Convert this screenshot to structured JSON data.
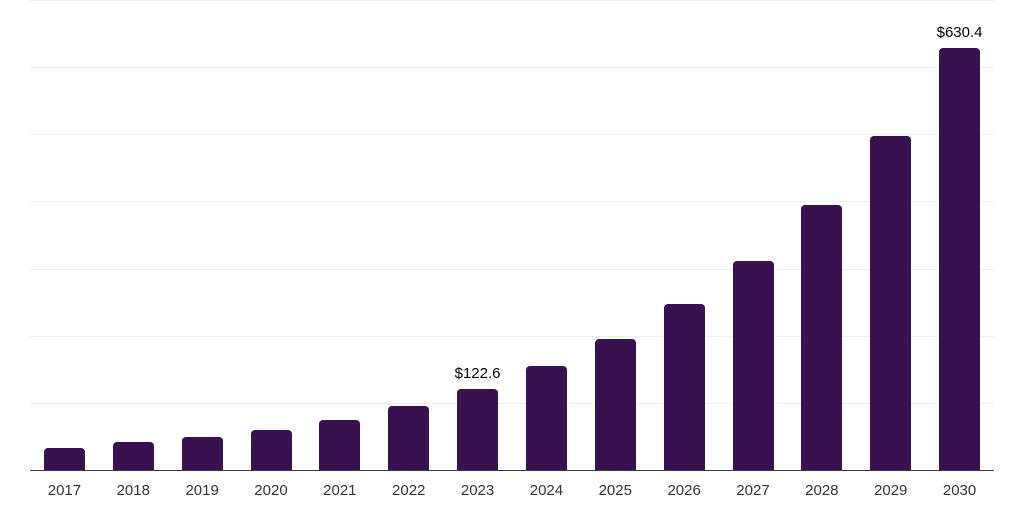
{
  "chart_data": {
    "type": "bar",
    "title": "",
    "xlabel": "",
    "ylabel": "",
    "categories": [
      "2017",
      "2018",
      "2019",
      "2020",
      "2021",
      "2022",
      "2023",
      "2024",
      "2025",
      "2026",
      "2027",
      "2028",
      "2029",
      "2030"
    ],
    "values": [
      33.6,
      43.1,
      50.6,
      61.0,
      76.3,
      96.7,
      122.6,
      156.2,
      196.0,
      248.5,
      312.5,
      395.8,
      498.4,
      630.4
    ],
    "data_labels": [
      {
        "index": 6,
        "text": "$122.6"
      },
      {
        "index": 13,
        "text": "$630.4"
      }
    ],
    "ylim": [
      0,
      700
    ],
    "gridline_step": 100,
    "grid": true,
    "y_tick_labels_visible": false,
    "legend": "none",
    "colors": {
      "bar": "#38124f",
      "axis_line": "#3b3b3b",
      "gridline": "#efefef",
      "tick_label": "#333333",
      "data_label": "#000000",
      "background": "#ffffff"
    }
  }
}
